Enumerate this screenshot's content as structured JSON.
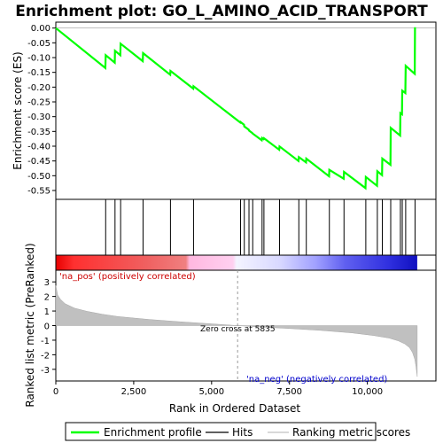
{
  "chart_data": {
    "type": "line",
    "title": "Enrichment plot: GO_L_AMINO_ACID_TRANSPORT",
    "xlabel": "Rank in Ordered Dataset",
    "ylabel_top": "Enrichment score (ES)",
    "ylabel_bottom": "Ranked list metric (PreRanked)",
    "x_ticks": [
      0,
      2500,
      5000,
      7500,
      10000
    ],
    "x_tick_labels": [
      "0",
      "2,500",
      "5,000",
      "7,500",
      "10,000"
    ],
    "es_ticks": [
      0.0,
      -0.05,
      -0.1,
      -0.15,
      -0.2,
      -0.25,
      -0.3,
      -0.35,
      -0.4,
      -0.45,
      -0.5,
      -0.55
    ],
    "es_tick_labels": [
      "0.00",
      "-0.05",
      "-0.10",
      "-0.15",
      "-0.20",
      "-0.25",
      "-0.30",
      "-0.35",
      "-0.40",
      "-0.45",
      "-0.50",
      "-0.55"
    ],
    "metric_ticks": [
      3,
      2,
      1,
      0,
      -1,
      -2,
      -3
    ],
    "metric_tick_labels": [
      "3",
      "2",
      "1",
      "0",
      "-1",
      "-2",
      "-3"
    ],
    "xlim": [
      0,
      12200
    ],
    "es_ylim": [
      -0.58,
      0.02
    ],
    "metric_ylim": [
      -3.8,
      3.8
    ],
    "total_ranks": 11600,
    "zero_cross": 5835,
    "zero_cross_label": "Zero cross at 5835",
    "pos_label": "'na_pos' (positively correlated)",
    "neg_label": "'na_neg' (negatively correlated)",
    "hits": [
      1600,
      1900,
      2080,
      2800,
      3680,
      4420,
      5930,
      6050,
      6200,
      6320,
      6620,
      6680,
      7180,
      7800,
      8040,
      8780,
      9250,
      9950,
      10320,
      10480,
      10750,
      11060,
      11120,
      11230,
      11530
    ],
    "es_profile": {
      "x": [
        0,
        1590,
        1600,
        1890,
        1900,
        2070,
        2080,
        2790,
        2800,
        3670,
        3680,
        4410,
        4420,
        5920,
        5930,
        6040,
        6050,
        6190,
        6200,
        6310,
        6320,
        6610,
        6620,
        6670,
        6680,
        7170,
        7180,
        7790,
        7800,
        8030,
        8040,
        8770,
        8780,
        9240,
        9250,
        9940,
        9950,
        10310,
        10320,
        10470,
        10480,
        10740,
        10750,
        11050,
        11060,
        11110,
        11120,
        11220,
        11230,
        11520,
        11530
      ],
      "y": [
        0.0,
        -0.135,
        -0.092,
        -0.117,
        -0.077,
        -0.092,
        -0.053,
        -0.112,
        -0.085,
        -0.158,
        -0.145,
        -0.205,
        -0.197,
        -0.32,
        -0.318,
        -0.327,
        -0.333,
        -0.344,
        -0.347,
        -0.356,
        -0.357,
        -0.38,
        -0.372,
        -0.376,
        -0.373,
        -0.412,
        -0.401,
        -0.45,
        -0.437,
        -0.455,
        -0.442,
        -0.502,
        -0.48,
        -0.51,
        -0.487,
        -0.542,
        -0.504,
        -0.534,
        -0.485,
        -0.498,
        -0.442,
        -0.463,
        -0.338,
        -0.364,
        -0.288,
        -0.292,
        -0.212,
        -0.22,
        -0.128,
        -0.155,
        0.003
      ]
    },
    "metric_curve": {
      "x": [
        0,
        60,
        150,
        300,
        600,
        1000,
        1500,
        2000,
        3000,
        4000,
        5000,
        5835,
        6500,
        7500,
        8500,
        9500,
        10200,
        10700,
        11000,
        11200,
        11350,
        11450,
        11520,
        11560,
        11600
      ],
      "y": [
        2.75,
        2.1,
        1.8,
        1.5,
        1.2,
        0.98,
        0.78,
        0.62,
        0.42,
        0.26,
        0.12,
        0.0,
        -0.09,
        -0.2,
        -0.33,
        -0.5,
        -0.68,
        -0.86,
        -1.05,
        -1.25,
        -1.5,
        -1.85,
        -2.3,
        -2.8,
        -3.5
      ]
    },
    "legend": {
      "items": [
        {
          "label": "Enrichment profile",
          "color": "#00ff00"
        },
        {
          "label": "Hits",
          "color": "#000000"
        },
        {
          "label": "Ranking metric scores",
          "color": "#c0c0c0"
        }
      ],
      "placement": "bottom"
    },
    "colors": {
      "es_line": "#00ff00",
      "metric_fill": "#c0c0c0",
      "pos_red": "#ff0000",
      "neg_blue": "#0000ff"
    }
  }
}
